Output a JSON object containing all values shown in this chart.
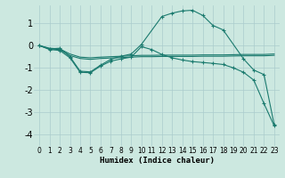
{
  "xlabel": "Humidex (Indice chaleur)",
  "bg_color": "#cce8e0",
  "grid_color": "#aacccc",
  "line_color": "#1a7a6e",
  "xlim": [
    -0.5,
    23.5
  ],
  "ylim": [
    -4.5,
    1.8
  ],
  "xticks": [
    0,
    1,
    2,
    3,
    4,
    5,
    6,
    7,
    8,
    9,
    10,
    11,
    12,
    13,
    14,
    15,
    16,
    17,
    18,
    19,
    20,
    21,
    22,
    23
  ],
  "yticks": [
    -4,
    -3,
    -2,
    -1,
    0,
    1
  ],
  "series": [
    {
      "x": [
        0,
        1,
        2,
        3,
        4,
        5,
        6,
        7,
        8,
        9,
        10,
        12,
        13,
        14,
        15,
        16,
        17,
        18,
        20,
        21,
        22,
        23
      ],
      "y": [
        0.0,
        -0.15,
        -0.12,
        -0.5,
        -1.15,
        -1.18,
        -0.88,
        -0.62,
        -0.48,
        -0.38,
        0.05,
        1.3,
        1.45,
        1.55,
        1.58,
        1.35,
        0.9,
        0.7,
        -0.6,
        -1.1,
        -1.3,
        -3.55
      ],
      "marker": true
    },
    {
      "x": [
        0,
        1,
        2,
        3,
        4,
        5,
        6,
        7,
        8,
        9,
        10,
        11,
        12,
        13,
        14,
        15,
        16,
        17,
        18,
        19,
        20,
        21,
        22,
        23
      ],
      "y": [
        0.0,
        -0.12,
        -0.15,
        -0.38,
        -0.52,
        -0.55,
        -0.52,
        -0.5,
        -0.48,
        -0.46,
        -0.44,
        -0.44,
        -0.43,
        -0.43,
        -0.43,
        -0.43,
        -0.42,
        -0.42,
        -0.42,
        -0.41,
        -0.4,
        -0.4,
        -0.4,
        -0.38
      ],
      "marker": false
    },
    {
      "x": [
        0,
        1,
        2,
        3,
        4,
        5,
        6,
        7,
        8,
        9,
        10,
        11,
        12,
        13,
        14,
        15,
        16,
        17,
        18,
        19,
        20,
        21,
        22,
        23
      ],
      "y": [
        0.0,
        -0.15,
        -0.18,
        -0.45,
        -0.58,
        -0.62,
        -0.58,
        -0.56,
        -0.54,
        -0.52,
        -0.5,
        -0.5,
        -0.49,
        -0.49,
        -0.49,
        -0.49,
        -0.48,
        -0.48,
        -0.48,
        -0.47,
        -0.46,
        -0.46,
        -0.46,
        -0.44
      ],
      "marker": false
    },
    {
      "x": [
        0,
        1,
        2,
        3,
        4,
        5,
        6,
        7,
        8,
        9,
        10,
        11,
        12,
        13,
        14,
        15,
        16,
        17,
        18,
        19,
        20,
        21,
        22,
        23
      ],
      "y": [
        0.0,
        -0.18,
        -0.22,
        -0.55,
        -1.2,
        -1.22,
        -0.92,
        -0.7,
        -0.6,
        -0.52,
        -0.05,
        -0.18,
        -0.4,
        -0.55,
        -0.65,
        -0.72,
        -0.76,
        -0.8,
        -0.85,
        -1.0,
        -1.2,
        -1.55,
        -2.6,
        -3.6
      ],
      "marker": true
    }
  ]
}
